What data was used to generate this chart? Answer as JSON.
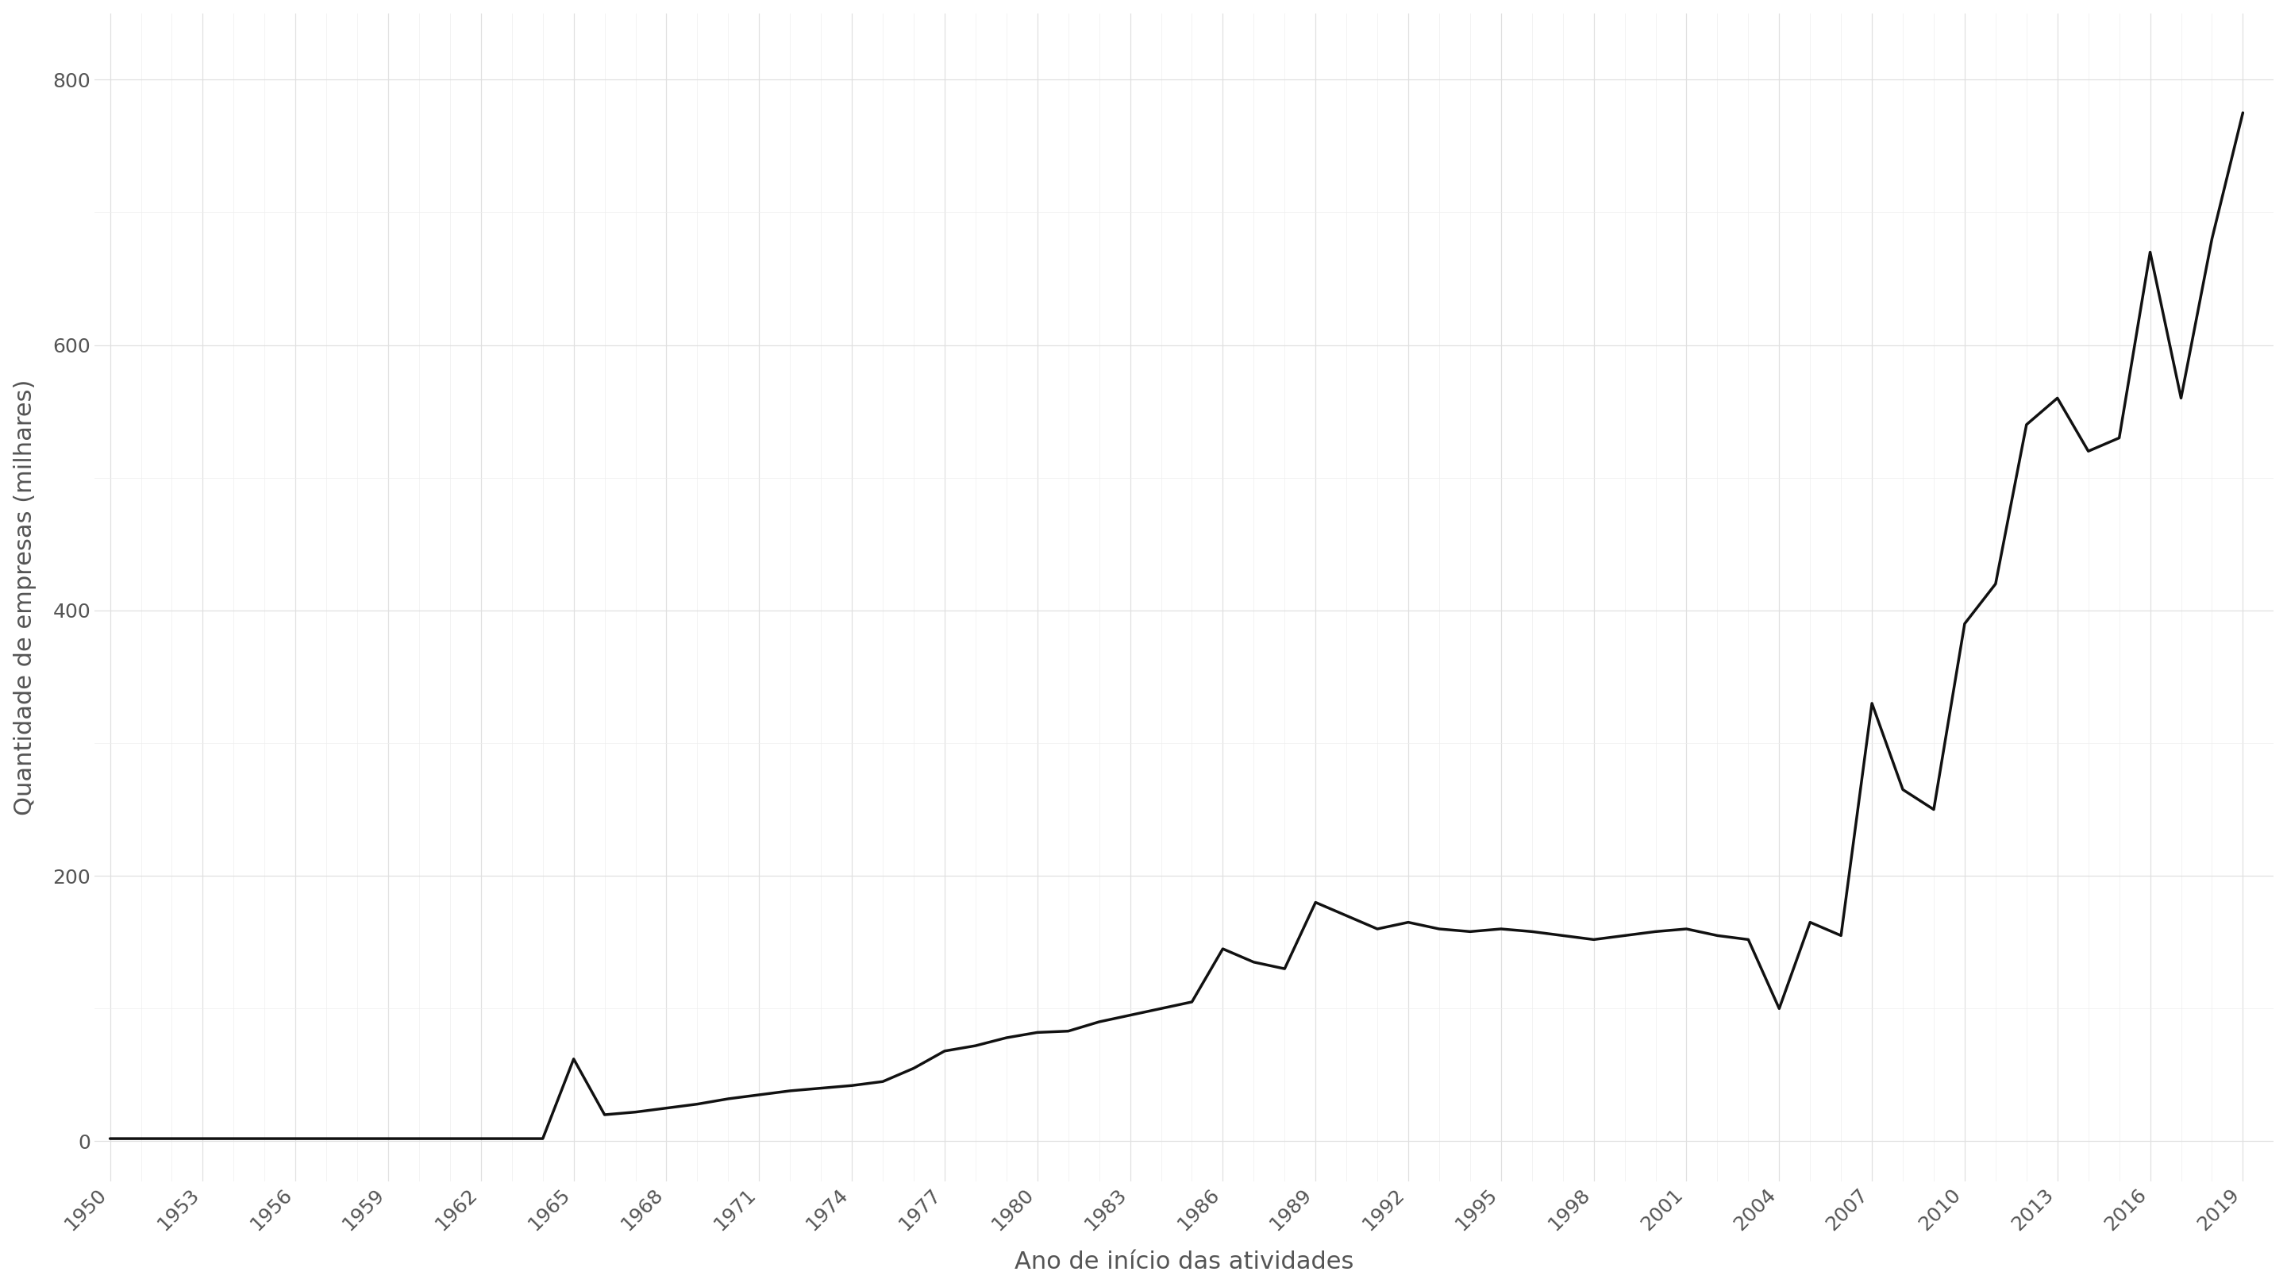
{
  "years": [
    1950,
    1951,
    1952,
    1953,
    1954,
    1955,
    1956,
    1957,
    1958,
    1959,
    1960,
    1961,
    1962,
    1963,
    1964,
    1965,
    1966,
    1967,
    1968,
    1969,
    1970,
    1971,
    1972,
    1973,
    1974,
    1975,
    1976,
    1977,
    1978,
    1979,
    1980,
    1981,
    1982,
    1983,
    1984,
    1985,
    1986,
    1987,
    1988,
    1989,
    1990,
    1991,
    1992,
    1993,
    1994,
    1995,
    1996,
    1997,
    1998,
    1999,
    2000,
    2001,
    2002,
    2003,
    2004,
    2005,
    2006,
    2007,
    2008,
    2009,
    2010,
    2011,
    2012,
    2013,
    2014,
    2015,
    2016,
    2017,
    2018,
    2019
  ],
  "values": [
    2,
    2,
    2,
    2,
    2,
    2,
    2,
    2,
    2,
    2,
    2,
    2,
    2,
    2,
    2,
    62,
    20,
    22,
    25,
    28,
    32,
    35,
    38,
    40,
    42,
    45,
    55,
    68,
    72,
    78,
    82,
    83,
    90,
    95,
    100,
    105,
    145,
    135,
    130,
    180,
    170,
    160,
    165,
    160,
    158,
    160,
    158,
    155,
    152,
    155,
    158,
    160,
    155,
    152,
    100,
    165,
    155,
    330,
    265,
    250,
    390,
    420,
    540,
    560,
    520,
    530,
    670,
    560,
    680,
    775
  ],
  "xlabel": "Ano de início das atividades",
  "ylabel": "Quantidade de empresas (milhares)",
  "xticks": [
    1950,
    1953,
    1956,
    1959,
    1962,
    1965,
    1968,
    1971,
    1974,
    1977,
    1980,
    1983,
    1986,
    1989,
    1992,
    1995,
    1998,
    2001,
    2004,
    2007,
    2010,
    2013,
    2016,
    2019
  ],
  "ylim": [
    -30,
    850
  ],
  "xlim": [
    1949.5,
    2020
  ],
  "yticks": [
    0,
    200,
    400,
    600,
    800
  ],
  "line_color": "#111111",
  "line_width": 2.5,
  "major_grid_color": "#e0e0e0",
  "minor_grid_color": "#eeeeee",
  "bg_color": "#ffffff",
  "panel_bg": "#ffffff",
  "tick_label_color": "#555555",
  "xlabel_fontsize": 22,
  "ylabel_fontsize": 22,
  "tick_fontsize": 18
}
